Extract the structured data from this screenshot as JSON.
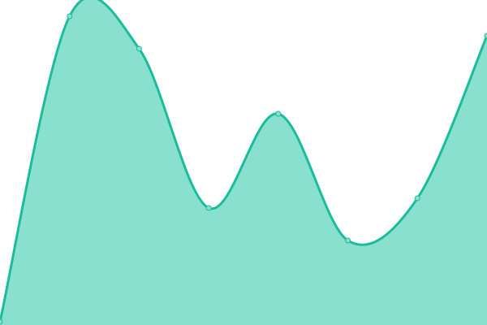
{
  "chart_data": {
    "type": "area",
    "x": [
      0,
      1,
      2,
      3,
      4,
      5,
      6,
      7
    ],
    "values": [
      1,
      95,
      85,
      36,
      65,
      26,
      39,
      89
    ],
    "ylim": [
      0,
      100
    ],
    "grid": false,
    "axes_visible": false,
    "legend": "none",
    "smooth": true,
    "colors": {
      "line": "#1abc9c",
      "fill": "#8ae0cf",
      "point_fill": "#8ae0cf"
    }
  }
}
